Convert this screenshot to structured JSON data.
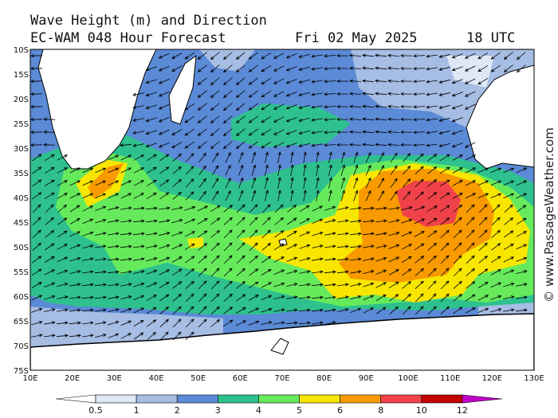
{
  "header": {
    "title": "Wave Height (m) and Direction",
    "model": "EC-WAM 048 Hour Forecast",
    "date": "Fri 02 May 2025",
    "time": "18 UTC"
  },
  "map": {
    "latitude_labels": [
      "10S",
      "15S",
      "20S",
      "25S",
      "30S",
      "35S",
      "40S",
      "45S",
      "50S",
      "55S",
      "60S",
      "65S",
      "70S",
      "75S"
    ],
    "longitude_labels": [
      "10E",
      "20E",
      "30E",
      "40E",
      "50E",
      "60E",
      "70E",
      "80E",
      "90E",
      "100E",
      "110E",
      "120E",
      "130E"
    ]
  },
  "legend": {
    "levels": [
      0.5,
      1,
      2,
      3,
      4,
      5,
      6,
      8,
      10,
      12
    ],
    "colors": [
      "#ffffff",
      "#dfe8f6",
      "#a6bde4",
      "#5b8ad6",
      "#2ec18e",
      "#66ea5c",
      "#f8e600",
      "#f89a00",
      "#f0424a",
      "#c40000",
      "#c000c8"
    ]
  },
  "watermark": "© www.PassageWeather.com"
}
